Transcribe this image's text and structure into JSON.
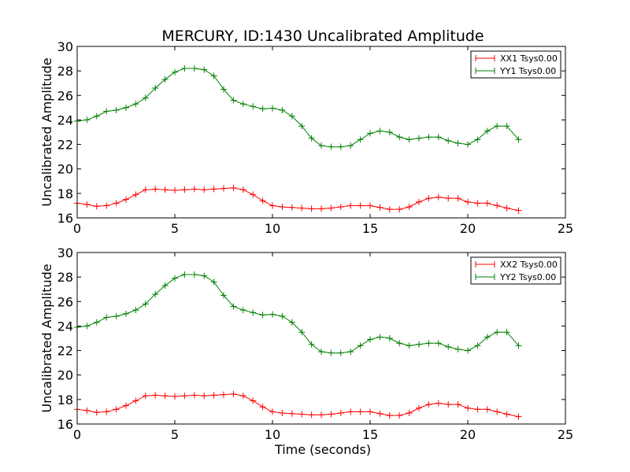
{
  "chart_data": [
    {
      "type": "line",
      "title": "MERCURY, ID:1430 Uncalibrated Amplitude",
      "xlabel": "",
      "ylabel": "Uncalibrated Amplitude",
      "xlim": [
        0,
        25
      ],
      "ylim": [
        16,
        30
      ],
      "xticks": [
        0,
        5,
        10,
        15,
        20,
        25
      ],
      "yticks": [
        16,
        18,
        20,
        22,
        24,
        26,
        28,
        30
      ],
      "legend_position": "top-right",
      "grid": false,
      "marker": "+",
      "series": [
        {
          "name": "XX1 Tsys0.00",
          "color": "#ff0000",
          "x": [
            0,
            0.5,
            1,
            1.5,
            2,
            2.5,
            3,
            3.5,
            4,
            4.5,
            5,
            5.5,
            6,
            6.5,
            7,
            7.5,
            8,
            8.5,
            9,
            9.5,
            10,
            10.5,
            11,
            11.5,
            12,
            12.5,
            13,
            13.5,
            14,
            14.5,
            15,
            15.5,
            16,
            16.5,
            17,
            17.5,
            18,
            18.5,
            19,
            19.5,
            20,
            20.5,
            21,
            21.5,
            22,
            22.6
          ],
          "values": [
            17.2,
            17.1,
            16.95,
            17.0,
            17.2,
            17.5,
            17.9,
            18.3,
            18.35,
            18.3,
            18.25,
            18.3,
            18.35,
            18.3,
            18.35,
            18.4,
            18.45,
            18.3,
            17.9,
            17.4,
            17.0,
            16.9,
            16.85,
            16.8,
            16.75,
            16.75,
            16.8,
            16.9,
            17.0,
            17.0,
            17.0,
            16.85,
            16.7,
            16.7,
            16.9,
            17.3,
            17.6,
            17.7,
            17.6,
            17.6,
            17.3,
            17.2,
            17.2,
            17.0,
            16.8,
            16.6
          ]
        },
        {
          "name": "YY1 Tsys0.00",
          "color": "#008000",
          "x": [
            0,
            0.5,
            1,
            1.5,
            2,
            2.5,
            3,
            3.5,
            4,
            4.5,
            5,
            5.5,
            6,
            6.5,
            7,
            7.5,
            8,
            8.5,
            9,
            9.5,
            10,
            10.5,
            11,
            11.5,
            12,
            12.5,
            13,
            13.5,
            14,
            14.5,
            15,
            15.5,
            16,
            16.5,
            17,
            17.5,
            18,
            18.5,
            19,
            19.5,
            20,
            20.5,
            21,
            21.5,
            22,
            22.6
          ],
          "values": [
            23.9,
            24.0,
            24.3,
            24.7,
            24.8,
            25.0,
            25.3,
            25.8,
            26.6,
            27.3,
            27.9,
            28.2,
            28.2,
            28.1,
            27.6,
            26.5,
            25.6,
            25.3,
            25.1,
            24.9,
            24.95,
            24.8,
            24.3,
            23.5,
            22.5,
            21.9,
            21.8,
            21.8,
            21.9,
            22.4,
            22.9,
            23.1,
            23.0,
            22.6,
            22.4,
            22.5,
            22.6,
            22.6,
            22.3,
            22.1,
            22.0,
            22.4,
            23.1,
            23.5,
            23.5,
            22.4
          ]
        }
      ]
    },
    {
      "type": "line",
      "title": "",
      "xlabel": "Time (seconds)",
      "ylabel": "Uncalibrated Amplitude",
      "xlim": [
        0,
        25
      ],
      "ylim": [
        16,
        30
      ],
      "xticks": [
        0,
        5,
        10,
        15,
        20,
        25
      ],
      "yticks": [
        16,
        18,
        20,
        22,
        24,
        26,
        28,
        30
      ],
      "legend_position": "top-right",
      "grid": false,
      "marker": "+",
      "series": [
        {
          "name": "XX2 Tsys0.00",
          "color": "#ff0000",
          "x": [
            0,
            0.5,
            1,
            1.5,
            2,
            2.5,
            3,
            3.5,
            4,
            4.5,
            5,
            5.5,
            6,
            6.5,
            7,
            7.5,
            8,
            8.5,
            9,
            9.5,
            10,
            10.5,
            11,
            11.5,
            12,
            12.5,
            13,
            13.5,
            14,
            14.5,
            15,
            15.5,
            16,
            16.5,
            17,
            17.5,
            18,
            18.5,
            19,
            19.5,
            20,
            20.5,
            21,
            21.5,
            22,
            22.6
          ],
          "values": [
            17.2,
            17.1,
            16.95,
            17.0,
            17.2,
            17.5,
            17.9,
            18.3,
            18.35,
            18.3,
            18.25,
            18.3,
            18.35,
            18.3,
            18.35,
            18.4,
            18.45,
            18.3,
            17.9,
            17.4,
            17.0,
            16.9,
            16.85,
            16.8,
            16.75,
            16.75,
            16.8,
            16.9,
            17.0,
            17.0,
            17.0,
            16.85,
            16.7,
            16.7,
            16.9,
            17.3,
            17.6,
            17.7,
            17.6,
            17.6,
            17.3,
            17.2,
            17.2,
            17.0,
            16.8,
            16.6
          ]
        },
        {
          "name": "YY2 Tsys0.00",
          "color": "#008000",
          "x": [
            0,
            0.5,
            1,
            1.5,
            2,
            2.5,
            3,
            3.5,
            4,
            4.5,
            5,
            5.5,
            6,
            6.5,
            7,
            7.5,
            8,
            8.5,
            9,
            9.5,
            10,
            10.5,
            11,
            11.5,
            12,
            12.5,
            13,
            13.5,
            14,
            14.5,
            15,
            15.5,
            16,
            16.5,
            17,
            17.5,
            18,
            18.5,
            19,
            19.5,
            20,
            20.5,
            21,
            21.5,
            22,
            22.6
          ],
          "values": [
            23.9,
            24.0,
            24.3,
            24.7,
            24.8,
            25.0,
            25.3,
            25.8,
            26.6,
            27.3,
            27.9,
            28.2,
            28.2,
            28.1,
            27.6,
            26.5,
            25.6,
            25.3,
            25.1,
            24.9,
            24.95,
            24.8,
            24.3,
            23.5,
            22.5,
            21.9,
            21.8,
            21.8,
            21.9,
            22.4,
            22.9,
            23.1,
            23.0,
            22.6,
            22.4,
            22.5,
            22.6,
            22.6,
            22.3,
            22.1,
            22.0,
            22.4,
            23.1,
            23.5,
            23.5,
            22.4
          ]
        }
      ]
    }
  ]
}
